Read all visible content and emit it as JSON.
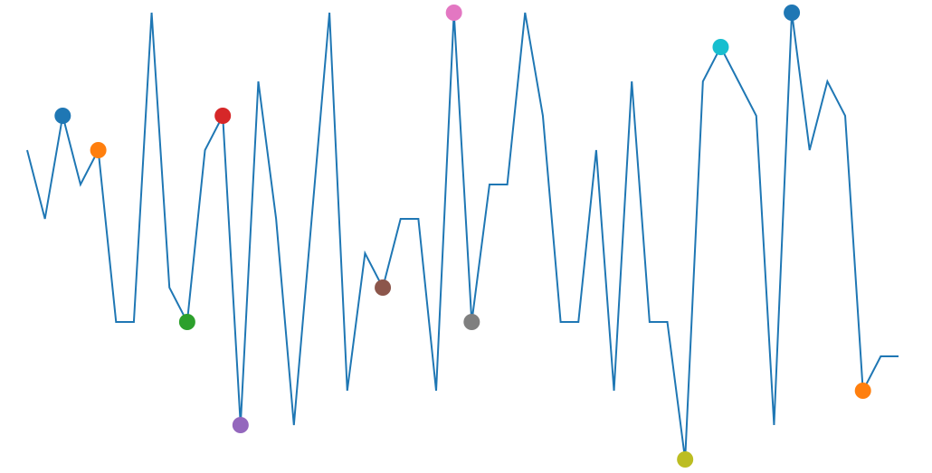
{
  "chart_data": {
    "type": "line",
    "title": "",
    "xlabel": "",
    "ylabel": "",
    "x": [
      0,
      1,
      2,
      3,
      4,
      5,
      6,
      7,
      8,
      9,
      10,
      11,
      12,
      13,
      14,
      15,
      16,
      17,
      18,
      19,
      20,
      21,
      22,
      23,
      24,
      25,
      26,
      27,
      28,
      29,
      30,
      31,
      32,
      33,
      34,
      35,
      36,
      37,
      38,
      39,
      40,
      41,
      42,
      43,
      44,
      45,
      46,
      47,
      48,
      49
    ],
    "series": [
      {
        "values": [
          9,
          7,
          10,
          8,
          9,
          4,
          4,
          13,
          5,
          4,
          9,
          10,
          1,
          11,
          7,
          1,
          7,
          13,
          2,
          6,
          5,
          7,
          7,
          2,
          13,
          4,
          8,
          8,
          13,
          10,
          4,
          4,
          9,
          2,
          11,
          4,
          4,
          0,
          11,
          12,
          11,
          10,
          1,
          13,
          9,
          11,
          10,
          2,
          3,
          3
        ],
        "color": "#1f77b4"
      }
    ],
    "ylim": [
      0,
      13
    ],
    "xlim": [
      0,
      49
    ],
    "grid": false,
    "legend": "none",
    "axes_visible": false,
    "markers": [
      {
        "index": 2,
        "color": "#1f77b4"
      },
      {
        "index": 4,
        "color": "#ff7f0e"
      },
      {
        "index": 9,
        "color": "#2ca02c"
      },
      {
        "index": 11,
        "color": "#d62728"
      },
      {
        "index": 12,
        "color": "#9467bd"
      },
      {
        "index": 20,
        "color": "#8c564b"
      },
      {
        "index": 24,
        "color": "#e377c2"
      },
      {
        "index": 25,
        "color": "#7f7f7f"
      },
      {
        "index": 37,
        "color": "#bcbd22"
      },
      {
        "index": 39,
        "color": "#17becf"
      },
      {
        "index": 43,
        "color": "#1f77b4"
      },
      {
        "index": 47,
        "color": "#ff7f0e"
      }
    ]
  }
}
